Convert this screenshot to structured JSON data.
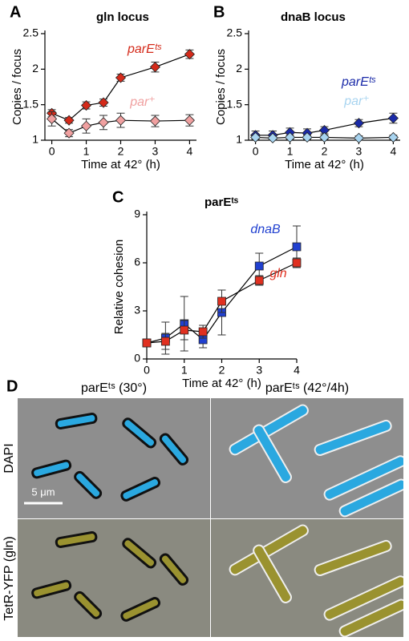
{
  "chart_data": [
    {
      "type": "line",
      "label": "A",
      "title": "gln locus",
      "ylabel": "Copies / focus",
      "xlabel": "Time at 42° (h)",
      "x": [
        0,
        0.5,
        1,
        1.5,
        2,
        3,
        4
      ],
      "xlim": [
        -0.2,
        4.2
      ],
      "xticks": [
        0,
        1,
        2,
        3,
        4
      ],
      "ylim": [
        1,
        2.5
      ],
      "yticks": [
        1,
        1.5,
        2,
        2.5
      ],
      "series": [
        {
          "name": "parEᵗˢ",
          "color": "#d42a1a",
          "values": [
            1.38,
            1.28,
            1.49,
            1.53,
            1.88,
            2.03,
            2.21
          ],
          "errors": [
            0.05,
            0.04,
            0.05,
            0.05,
            0.05,
            0.07,
            0.06
          ]
        },
        {
          "name": "par⁺",
          "color": "#f0a0a0",
          "values": [
            1.3,
            1.1,
            1.2,
            1.25,
            1.28,
            1.27,
            1.28
          ],
          "errors": [
            0.1,
            0.05,
            0.1,
            0.1,
            0.1,
            0.08,
            0.08
          ]
        }
      ]
    },
    {
      "type": "line",
      "label": "B",
      "title": "dnaB locus",
      "ylabel": "Copies / focus",
      "xlabel": "Time at 42° (h)",
      "x": [
        0,
        0.5,
        1,
        1.5,
        2,
        3,
        4
      ],
      "xlim": [
        -0.2,
        4.2
      ],
      "xticks": [
        0,
        1,
        2,
        3,
        4
      ],
      "ylim": [
        1,
        2.5
      ],
      "yticks": [
        1,
        1.5,
        2,
        2.5
      ],
      "series": [
        {
          "name": "parEᵗˢ",
          "color": "#1a2aa8",
          "values": [
            1.07,
            1.07,
            1.11,
            1.1,
            1.14,
            1.24,
            1.31
          ],
          "errors": [
            0.06,
            0.06,
            0.06,
            0.06,
            0.05,
            0.05,
            0.07
          ]
        },
        {
          "name": "par⁺",
          "color": "#a8d4f0",
          "values": [
            1.04,
            1.03,
            1.04,
            1.04,
            1.04,
            1.03,
            1.04
          ],
          "errors": [
            0.03,
            0.03,
            0.03,
            0.03,
            0.03,
            0.03,
            0.03
          ]
        }
      ]
    },
    {
      "type": "line",
      "label": "C",
      "title": "parEᵗˢ",
      "ylabel": "Relative cohesion",
      "xlabel": "Time at 42° (h)",
      "x": [
        0,
        0.5,
        1,
        1.5,
        2,
        3,
        4
      ],
      "xlim": [
        0,
        4
      ],
      "xticks": [
        0,
        1,
        2,
        3,
        4
      ],
      "ylim": [
        0,
        9
      ],
      "yticks": [
        0,
        3,
        6,
        9
      ],
      "series": [
        {
          "name": "dnaB",
          "color": "#2040d0",
          "values": [
            1.0,
            1.3,
            2.2,
            1.2,
            2.9,
            5.8,
            7.0
          ],
          "errors": [
            0.2,
            1.0,
            1.7,
            0.5,
            1.4,
            0.8,
            1.3
          ]
        },
        {
          "name": "gln",
          "color": "#e03020",
          "values": [
            1.0,
            1.1,
            1.8,
            1.7,
            3.6,
            4.9,
            6.0
          ],
          "errors": [
            0.2,
            0.5,
            0.6,
            0.4,
            0.7,
            0.3,
            0.3
          ]
        }
      ]
    }
  ],
  "panel_d": {
    "label": "D",
    "columns": [
      "parEᵗˢ (30°)",
      "parEᵗˢ (42°/4h)"
    ],
    "rows": [
      "DAPI",
      "TetR-YFP (gln)"
    ],
    "scale_bar": "5 μm"
  }
}
